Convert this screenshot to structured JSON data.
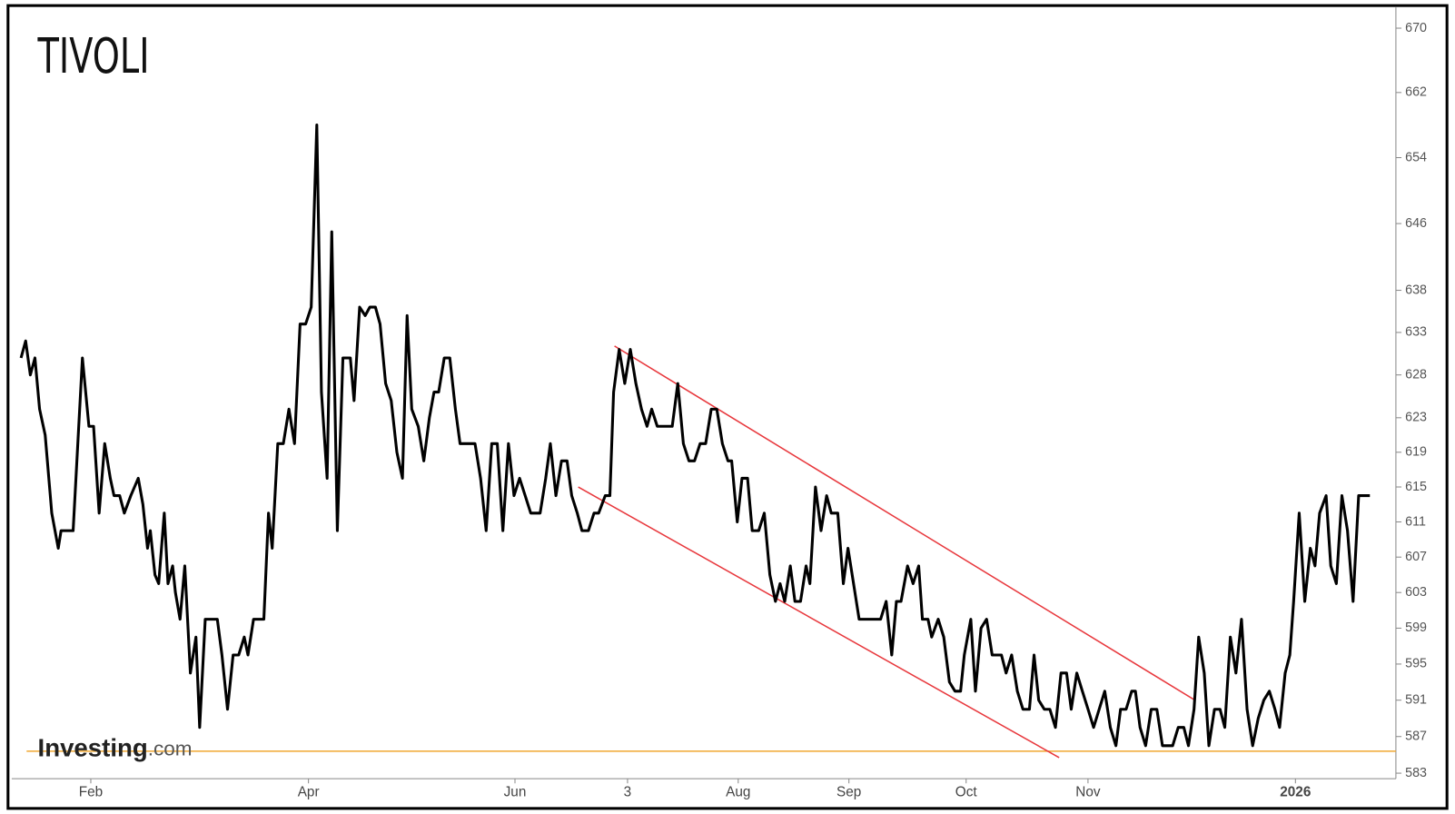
{
  "chart_data": {
    "type": "line",
    "title": "TIVOLI",
    "logo": "Investing",
    "logo_suffix": ".com",
    "log_scale": true,
    "ylim": [
      582.4,
      672.6
    ],
    "yticks": [
      583,
      587,
      591,
      595,
      599,
      603,
      607,
      611,
      615,
      619,
      623,
      628,
      633,
      638,
      646,
      654,
      662,
      670
    ],
    "xlim": [
      -2,
      295.6
    ],
    "xticks": [
      {
        "value": 15,
        "label": "Feb"
      },
      {
        "value": 61.8,
        "label": "Apr"
      },
      {
        "value": 106.2,
        "label": "Jun"
      },
      {
        "value": 130.4,
        "label": "3"
      },
      {
        "value": 154.2,
        "label": "Aug"
      },
      {
        "value": 178,
        "label": "Sep"
      },
      {
        "value": 203.2,
        "label": "Oct"
      },
      {
        "value": 229.4,
        "label": "Nov"
      },
      {
        "value": 274,
        "label": "2026"
      }
    ],
    "x": [
      0,
      1,
      2,
      3,
      4,
      5.2,
      6.6,
      8,
      8.6,
      11.2,
      13.2,
      14.6,
      15.6,
      16.8,
      18,
      19.2,
      20,
      21.2,
      22.2,
      23.6,
      25.2,
      26.2,
      27.2,
      27.8,
      28.8,
      29.6,
      30.8,
      31.6,
      32.6,
      33.2,
      34.2,
      35.2,
      36.4,
      37.6,
      38.4,
      39.6,
      42.2,
      43.2,
      44.4,
      45.6,
      46.8,
      48,
      48.8,
      50,
      52.2,
      53.2,
      54,
      55.2,
      56.4,
      57.6,
      58.8,
      60,
      61.2,
      62.4,
      63.6,
      64.6,
      65.8,
      66.8,
      68,
      69.2,
      70.8,
      71.6,
      72.8,
      74,
      75,
      76.2,
      77.2,
      78.4,
      79.6,
      80.8,
      82,
      83,
      84,
      85.4,
      86.6,
      87.8,
      88.8,
      89.8,
      91,
      92.2,
      93.4,
      94.4,
      97.6,
      98.8,
      100,
      101.2,
      102.4,
      103.6,
      104.8,
      106,
      107.2,
      108.4,
      109.6,
      111.6,
      112.8,
      113.8,
      115,
      116.2,
      117.4,
      118.4,
      119.6,
      120.6,
      122,
      123.2,
      124.2,
      125.6,
      126.6,
      127.4,
      128.6,
      129.8,
      131,
      132.2,
      133.4,
      134.6,
      135.6,
      136.8,
      140,
      141.2,
      142.4,
      143.6,
      144.8,
      146,
      147.2,
      148.4,
      149.6,
      150.8,
      152,
      152.8,
      154,
      155,
      156.2,
      157.2,
      158.6,
      159.8,
      161,
      162.2,
      163.2,
      164.2,
      165.4,
      166.4,
      167.6,
      168.8,
      169.6,
      170.8,
      172,
      173.2,
      174.2,
      175.6,
      176.8,
      177.8,
      179,
      180.2,
      184.8,
      186,
      187.2,
      188.2,
      189.2,
      190.6,
      191.8,
      193,
      193.8,
      195,
      195.8,
      197.2,
      198.4,
      199.6,
      200.8,
      202,
      202.8,
      204.2,
      205.2,
      206.4,
      207.6,
      208.8,
      210.8,
      211.8,
      213,
      214.2,
      215.4,
      216.8,
      217.8,
      218.8,
      220,
      221.2,
      222.4,
      223.6,
      224.8,
      225.8,
      227,
      228.2,
      229.4,
      230.6,
      231.8,
      233,
      234.2,
      235.4,
      236.4,
      237.6,
      238.8,
      239.6,
      240.6,
      241.8,
      243,
      244.2,
      245.4,
      247.6,
      248.8,
      250,
      251,
      252.2,
      253.2,
      254.4,
      255.4,
      256.6,
      257.8,
      258.8,
      260,
      261.2,
      262.4,
      263.6,
      264.8,
      266,
      267.2,
      268.4,
      269.6,
      270.6,
      271.8,
      272.8,
      273.6,
      274.8,
      276,
      277.2,
      278.2,
      279.2,
      280.6,
      281.6,
      282.8,
      284,
      285.2,
      286.4,
      287.6,
      290
    ],
    "series": [
      {
        "color": "#000000",
        "values": [
          630,
          632,
          628,
          630,
          624,
          621,
          612,
          608,
          610,
          610,
          630,
          622,
          622,
          612,
          620,
          616,
          614,
          614,
          612,
          614,
          616,
          613,
          608,
          610,
          605,
          604,
          612,
          604,
          606,
          603,
          600,
          606,
          594,
          598,
          588,
          600,
          600,
          596,
          590,
          596,
          596,
          598,
          596,
          600,
          600,
          612,
          608,
          620,
          620,
          624,
          620,
          634,
          634,
          636,
          658,
          626,
          616,
          645,
          610,
          630,
          630,
          625,
          636,
          635,
          636,
          636,
          634,
          627,
          625,
          619,
          616,
          635,
          624,
          622,
          618,
          623,
          626,
          626,
          630,
          630,
          624,
          620,
          620,
          616,
          610,
          620,
          620,
          610,
          620,
          614,
          616,
          614,
          612,
          612,
          616,
          620,
          614,
          618,
          618,
          614,
          612,
          610,
          610,
          612,
          612,
          614,
          614,
          626,
          631,
          627,
          631,
          627,
          624,
          622,
          624,
          622,
          622,
          627,
          620,
          618,
          618,
          620,
          620,
          624,
          624,
          620,
          618,
          618,
          611,
          616,
          616,
          610,
          610,
          612,
          605,
          602,
          604,
          602,
          606,
          602,
          602,
          606,
          604,
          615,
          610,
          614,
          612,
          612,
          604,
          608,
          604,
          600,
          600,
          602,
          596,
          602,
          602,
          606,
          604,
          606,
          600,
          600,
          598,
          600,
          598,
          593,
          592,
          592,
          596,
          600,
          592,
          599,
          600,
          596,
          596,
          594,
          596,
          592,
          590,
          590,
          596,
          591,
          590,
          590,
          588,
          594,
          594,
          590,
          594,
          592,
          590,
          588,
          590,
          592,
          588,
          586,
          590,
          590,
          592,
          592,
          588,
          586,
          590,
          590,
          586,
          586,
          588,
          588,
          586,
          590,
          598,
          594,
          586,
          590,
          590,
          588,
          598,
          594,
          600,
          590,
          586,
          589,
          591,
          592,
          590,
          588,
          594,
          596,
          602,
          612,
          602,
          608,
          606,
          612,
          614,
          606,
          604,
          614,
          610,
          602,
          614,
          614
        ]
      }
    ],
    "trendlines": [
      {
        "x": [
          127.6,
          252.4
        ],
        "y": [
          631.4,
          591
        ],
        "color": "#e8383d"
      },
      {
        "x": [
          119.8,
          223.2
        ],
        "y": [
          615,
          584.7
        ],
        "color": "#e8383d"
      }
    ],
    "hlines": [
      {
        "value": 585.4,
        "color": "#f0a830"
      }
    ]
  }
}
